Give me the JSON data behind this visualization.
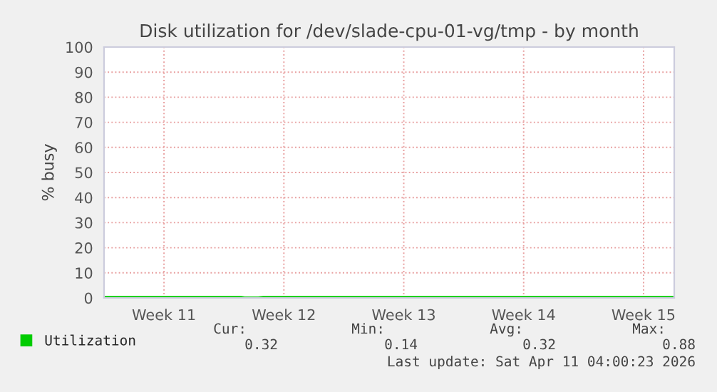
{
  "chart_data": {
    "type": "line",
    "title": "Disk utilization for /dev/slade-cpu-01-vg/tmp - by month",
    "ylabel": "% busy",
    "xlim": [
      "2026-03-09",
      "2026-04-11T07:00"
    ],
    "xticks": [
      {
        "value": "2026-03-12T12:00",
        "label": "Week 11"
      },
      {
        "value": "2026-03-19T12:00",
        "label": "Week 12"
      },
      {
        "value": "2026-03-26T12:00",
        "label": "Week 13"
      },
      {
        "value": "2026-04-02T12:00",
        "label": "Week 14"
      },
      {
        "value": "2026-04-09T12:00",
        "label": "Week 15"
      }
    ],
    "ylim": [
      0,
      100
    ],
    "yticks": [
      0,
      10,
      20,
      30,
      40,
      50,
      60,
      70,
      80,
      90,
      100
    ],
    "grid": true,
    "legend": "bottom",
    "series": [
      {
        "name": "Utilization",
        "color": "#00cc00",
        "x": [
          "2026-03-09",
          "2026-03-17",
          "2026-03-17T05:00",
          "2026-03-18",
          "2026-03-18T07:00",
          "2026-03-24",
          "2026-03-29",
          "2026-04-04",
          "2026-04-08",
          "2026-04-11T05:00"
        ],
        "values": [
          0.3,
          0.3,
          0.1,
          0.1,
          0.3,
          0.3,
          0.3,
          0.3,
          0.3,
          0.3
        ]
      }
    ],
    "annotations": [
      "Cur:",
      "Min:",
      "Avg:",
      "Max:",
      "0.32",
      "0.14",
      "0.32",
      "0.88",
      "Last update: Sat Apr 11 04:00:23 2026"
    ]
  }
}
